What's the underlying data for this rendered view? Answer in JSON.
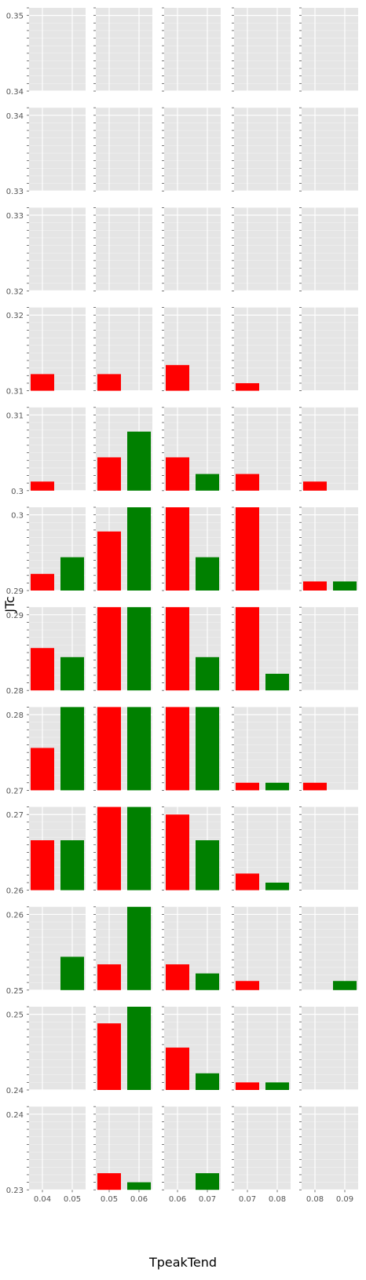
{
  "chart_data": {
    "type": "bar",
    "xlabel": "TpeakTend",
    "ylabel": "JTc",
    "facet_rows": [
      {
        "ylim": [
          0.34,
          0.351
        ],
        "ytick_labels": [
          "0.34",
          "0.35"
        ],
        "ytick_values": [
          0.34,
          0.35
        ]
      },
      {
        "ylim": [
          0.33,
          0.341
        ],
        "ytick_labels": [
          "0.33",
          "0.34"
        ],
        "ytick_values": [
          0.33,
          0.34
        ]
      },
      {
        "ylim": [
          0.32,
          0.331
        ],
        "ytick_labels": [
          "0.32",
          "0.33"
        ],
        "ytick_values": [
          0.32,
          0.33
        ]
      },
      {
        "ylim": [
          0.31,
          0.321
        ],
        "ytick_labels": [
          "0.31",
          "0.32"
        ],
        "ytick_values": [
          0.31,
          0.32
        ]
      },
      {
        "ylim": [
          0.3,
          0.311
        ],
        "ytick_labels": [
          "0.3",
          "0.31"
        ],
        "ytick_values": [
          0.3,
          0.31
        ]
      },
      {
        "ylim": [
          0.29,
          0.301
        ],
        "ytick_labels": [
          "0.29",
          "0.3"
        ],
        "ytick_values": [
          0.29,
          0.3
        ]
      },
      {
        "ylim": [
          0.28,
          0.291
        ],
        "ytick_labels": [
          "0.28",
          "0.29"
        ],
        "ytick_values": [
          0.28,
          0.29
        ]
      },
      {
        "ylim": [
          0.27,
          0.281
        ],
        "ytick_labels": [
          "0.27",
          "0.28"
        ],
        "ytick_values": [
          0.27,
          0.28
        ]
      },
      {
        "ylim": [
          0.26,
          0.271
        ],
        "ytick_labels": [
          "0.26",
          "0.27"
        ],
        "ytick_values": [
          0.26,
          0.27
        ]
      },
      {
        "ylim": [
          0.25,
          0.261
        ],
        "ytick_labels": [
          "0.25",
          "0.26"
        ],
        "ytick_values": [
          0.25,
          0.26
        ]
      },
      {
        "ylim": [
          0.24,
          0.251
        ],
        "ytick_labels": [
          "0.24",
          "0.25"
        ],
        "ytick_values": [
          0.24,
          0.25
        ]
      },
      {
        "ylim": [
          0.23,
          0.241
        ],
        "ytick_labels": [
          "0.23",
          "0.24"
        ],
        "ytick_values": [
          0.23,
          0.24
        ]
      }
    ],
    "facet_cols": [
      {
        "xtick_labels": [
          "0.04",
          "0.05"
        ]
      },
      {
        "xtick_labels": [
          "0.05",
          "0.06"
        ]
      },
      {
        "xtick_labels": [
          "0.06",
          "0.07"
        ]
      },
      {
        "xtick_labels": [
          "0.07",
          "0.08"
        ]
      },
      {
        "xtick_labels": [
          "0.08",
          "0.09"
        ]
      }
    ],
    "series": [
      {
        "color": "#ff0000"
      },
      {
        "color": "#008000"
      }
    ],
    "values": [
      [
        [
          0,
          0
        ],
        [
          0,
          0
        ],
        [
          0,
          0
        ],
        [
          0,
          0
        ],
        [
          0,
          0
        ]
      ],
      [
        [
          0,
          0
        ],
        [
          0,
          0
        ],
        [
          0,
          0
        ],
        [
          0,
          0
        ],
        [
          0,
          0
        ]
      ],
      [
        [
          0,
          0
        ],
        [
          0,
          0
        ],
        [
          0,
          0
        ],
        [
          0,
          0
        ],
        [
          0,
          0
        ]
      ],
      [
        [
          0.0022,
          0
        ],
        [
          0.0022,
          0
        ],
        [
          0.0034,
          0
        ],
        [
          0.001,
          0
        ],
        [
          0,
          0
        ]
      ],
      [
        [
          0.0012,
          0
        ],
        [
          0.0044,
          0.0078
        ],
        [
          0.0044,
          0.0022
        ],
        [
          0.0022,
          0
        ],
        [
          0.0012,
          0
        ]
      ],
      [
        [
          0.0022,
          0.0044
        ],
        [
          0.0078,
          0.011
        ],
        [
          0.011,
          0.0044
        ],
        [
          0.011,
          0
        ],
        [
          0.0012,
          0.0012
        ]
      ],
      [
        [
          0.0056,
          0.0044
        ],
        [
          0.011,
          0.011
        ],
        [
          0.011,
          0.0044
        ],
        [
          0.011,
          0.0022
        ],
        [
          0,
          0
        ]
      ],
      [
        [
          0.0056,
          0.011
        ],
        [
          0.011,
          0.011
        ],
        [
          0.011,
          0.011
        ],
        [
          0.001,
          0.001
        ],
        [
          0.001,
          0
        ]
      ],
      [
        [
          0.0066,
          0.0066
        ],
        [
          0.011,
          0.011
        ],
        [
          0.01,
          0.0066
        ],
        [
          0.0022,
          0.001
        ],
        [
          0,
          0
        ]
      ],
      [
        [
          0,
          0.0044
        ],
        [
          0.0034,
          0.011
        ],
        [
          0.0034,
          0.0022
        ],
        [
          0.0012,
          0
        ],
        [
          0,
          0.0012
        ]
      ],
      [
        [
          0,
          0
        ],
        [
          0.0088,
          0.011
        ],
        [
          0.0056,
          0.0022
        ],
        [
          0.001,
          0.001
        ],
        [
          0,
          0
        ]
      ],
      [
        [
          0,
          0
        ],
        [
          0.0022,
          0.001
        ],
        [
          0,
          0.0022
        ],
        [
          0,
          0
        ],
        [
          0,
          0
        ]
      ]
    ],
    "grid": true,
    "legend": "none"
  }
}
